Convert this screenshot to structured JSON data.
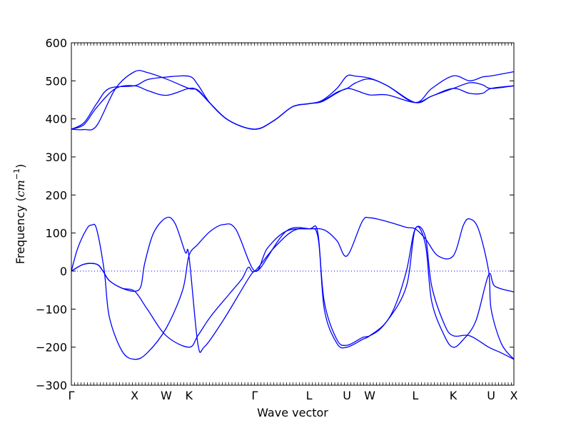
{
  "chart_data": {
    "type": "line",
    "title": "",
    "xlabel": "Wave vector",
    "ylabel": "Frequency",
    "ylabel_unit": "cm",
    "ylabel_unit_exponent": "−1",
    "ylim": [
      -300,
      600
    ],
    "yticks": [
      -300,
      -200,
      -100,
      0,
      100,
      200,
      300,
      400,
      500,
      600
    ],
    "xlim": [
      0,
      3.5
    ],
    "zero_line": true,
    "grid": false,
    "line_color": "#0000ff",
    "high_points": [
      {
        "label": "Γ",
        "x": 0.0
      },
      {
        "label": "X",
        "x": 0.5
      },
      {
        "label": "W",
        "x": 0.75
      },
      {
        "label": "K",
        "x": 0.93
      },
      {
        "label": "Γ",
        "x": 1.45
      },
      {
        "label": "L",
        "x": 1.88
      },
      {
        "label": "U",
        "x": 2.18
      },
      {
        "label": "W",
        "x": 2.36
      },
      {
        "label": "L",
        "x": 2.72
      },
      {
        "label": "K",
        "x": 3.02
      },
      {
        "label": "U",
        "x": 3.32
      },
      {
        "label": "X",
        "x": 3.5
      }
    ],
    "series": [
      {
        "points": [
          [
            0,
            373
          ],
          [
            0.1,
            390
          ],
          [
            0.2,
            440
          ],
          [
            0.3,
            480
          ],
          [
            0.5,
            487
          ],
          [
            0.6,
            503
          ],
          [
            0.75,
            510
          ],
          [
            0.93,
            512
          ],
          [
            1.0,
            490
          ],
          [
            1.1,
            440
          ],
          [
            1.25,
            395
          ],
          [
            1.45,
            373
          ],
          [
            1.6,
            395
          ],
          [
            1.75,
            432
          ],
          [
            1.88,
            440
          ],
          [
            1.98,
            448
          ],
          [
            2.1,
            480
          ],
          [
            2.18,
            513
          ],
          [
            2.25,
            512
          ],
          [
            2.36,
            507
          ],
          [
            2.5,
            487
          ],
          [
            2.72,
            443
          ],
          [
            2.85,
            480
          ],
          [
            3.02,
            513
          ],
          [
            3.15,
            500
          ],
          [
            3.25,
            510
          ],
          [
            3.32,
            513
          ],
          [
            3.5,
            524
          ]
        ]
      },
      {
        "points": [
          [
            0,
            373
          ],
          [
            0.1,
            372
          ],
          [
            0.2,
            382
          ],
          [
            0.35,
            480
          ],
          [
            0.5,
            524
          ],
          [
            0.6,
            522
          ],
          [
            0.75,
            505
          ],
          [
            0.93,
            480
          ],
          [
            1.0,
            476
          ],
          [
            1.1,
            440
          ],
          [
            1.25,
            395
          ],
          [
            1.45,
            373
          ],
          [
            1.6,
            395
          ],
          [
            1.75,
            432
          ],
          [
            1.88,
            440
          ],
          [
            1.98,
            445
          ],
          [
            2.1,
            468
          ],
          [
            2.18,
            480
          ],
          [
            2.25,
            475
          ],
          [
            2.36,
            463
          ],
          [
            2.5,
            463
          ],
          [
            2.72,
            443
          ],
          [
            2.85,
            460
          ],
          [
            3.02,
            480
          ],
          [
            3.15,
            495
          ],
          [
            3.25,
            490
          ],
          [
            3.32,
            480
          ],
          [
            3.5,
            487
          ]
        ]
      },
      {
        "points": [
          [
            0,
            373
          ],
          [
            0.1,
            385
          ],
          [
            0.2,
            430
          ],
          [
            0.35,
            480
          ],
          [
            0.5,
            487
          ],
          [
            0.6,
            475
          ],
          [
            0.75,
            462
          ],
          [
            0.93,
            480
          ],
          [
            1.0,
            474
          ],
          [
            1.1,
            440
          ],
          [
            1.25,
            395
          ],
          [
            1.45,
            373
          ],
          [
            1.6,
            395
          ],
          [
            1.75,
            432
          ],
          [
            1.88,
            440
          ],
          [
            1.98,
            446
          ],
          [
            2.1,
            470
          ],
          [
            2.18,
            480
          ],
          [
            2.25,
            495
          ],
          [
            2.36,
            505
          ],
          [
            2.5,
            487
          ],
          [
            2.72,
            443
          ],
          [
            2.85,
            460
          ],
          [
            3.02,
            480
          ],
          [
            3.15,
            467
          ],
          [
            3.25,
            467
          ],
          [
            3.32,
            480
          ],
          [
            3.5,
            487
          ]
        ]
      },
      {
        "points": [
          [
            0,
            0
          ],
          [
            0.05,
            60
          ],
          [
            0.12,
            110
          ],
          [
            0.16,
            121
          ],
          [
            0.2,
            110
          ],
          [
            0.26,
            0
          ],
          [
            0.3,
            -120
          ],
          [
            0.4,
            -210
          ],
          [
            0.5,
            -232
          ],
          [
            0.6,
            -215
          ],
          [
            0.75,
            -150
          ],
          [
            0.88,
            -50
          ],
          [
            0.93,
            40
          ],
          [
            1.0,
            70
          ],
          [
            1.1,
            105
          ],
          [
            1.2,
            122
          ],
          [
            1.3,
            110
          ],
          [
            1.45,
            0
          ],
          [
            1.55,
            60
          ],
          [
            1.7,
            105
          ],
          [
            1.88,
            111
          ],
          [
            2.0,
            108
          ],
          [
            2.1,
            80
          ],
          [
            2.18,
            40
          ],
          [
            2.3,
            130
          ],
          [
            2.36,
            140
          ],
          [
            2.5,
            130
          ],
          [
            2.65,
            115
          ],
          [
            2.72,
            111
          ],
          [
            2.8,
            85
          ],
          [
            2.9,
            40
          ],
          [
            3.02,
            40
          ],
          [
            3.1,
            120
          ],
          [
            3.15,
            137
          ],
          [
            3.22,
            110
          ],
          [
            3.3,
            0
          ],
          [
            3.32,
            -100
          ],
          [
            3.4,
            -190
          ],
          [
            3.5,
            -232
          ]
        ]
      },
      {
        "points": [
          [
            0,
            0
          ],
          [
            0.1,
            18
          ],
          [
            0.2,
            18
          ],
          [
            0.25,
            0
          ],
          [
            0.3,
            -25
          ],
          [
            0.4,
            -45
          ],
          [
            0.5,
            -53
          ],
          [
            0.55,
            -40
          ],
          [
            0.58,
            20
          ],
          [
            0.65,
            100
          ],
          [
            0.75,
            140
          ],
          [
            0.82,
            125
          ],
          [
            0.9,
            50
          ],
          [
            0.93,
            40
          ],
          [
            1.0,
            -190
          ],
          [
            1.05,
            -200
          ],
          [
            1.2,
            -130
          ],
          [
            1.4,
            -20
          ],
          [
            1.45,
            0
          ],
          [
            1.5,
            10
          ],
          [
            1.7,
            105
          ],
          [
            1.88,
            111
          ],
          [
            1.95,
            100
          ],
          [
            2.0,
            -100
          ],
          [
            2.1,
            -190
          ],
          [
            2.18,
            -200
          ],
          [
            2.3,
            -180
          ],
          [
            2.36,
            -170
          ],
          [
            2.5,
            -130
          ],
          [
            2.65,
            -40
          ],
          [
            2.72,
            111
          ],
          [
            2.8,
            70
          ],
          [
            2.85,
            -80
          ],
          [
            2.95,
            -170
          ],
          [
            3.02,
            -200
          ],
          [
            3.1,
            -180
          ],
          [
            3.2,
            -130
          ],
          [
            3.3,
            -10
          ],
          [
            3.35,
            -40
          ],
          [
            3.5,
            -55
          ]
        ]
      },
      {
        "points": [
          [
            0,
            0
          ],
          [
            0.1,
            18
          ],
          [
            0.2,
            18
          ],
          [
            0.25,
            0
          ],
          [
            0.3,
            -25
          ],
          [
            0.4,
            -45
          ],
          [
            0.5,
            -53
          ],
          [
            0.6,
            -100
          ],
          [
            0.75,
            -170
          ],
          [
            0.93,
            -200
          ],
          [
            1.0,
            -170
          ],
          [
            1.1,
            -120
          ],
          [
            1.25,
            -60
          ],
          [
            1.35,
            -20
          ],
          [
            1.4,
            10
          ],
          [
            1.45,
            0
          ],
          [
            1.6,
            60
          ],
          [
            1.75,
            105
          ],
          [
            1.88,
            111
          ],
          [
            1.95,
            90
          ],
          [
            2.0,
            -80
          ],
          [
            2.1,
            -180
          ],
          [
            2.18,
            -195
          ],
          [
            2.3,
            -175
          ],
          [
            2.36,
            -170
          ],
          [
            2.45,
            -150
          ],
          [
            2.55,
            -100
          ],
          [
            2.65,
            0
          ],
          [
            2.72,
            111
          ],
          [
            2.8,
            90
          ],
          [
            2.85,
            -40
          ],
          [
            2.95,
            -140
          ],
          [
            3.02,
            -170
          ],
          [
            3.15,
            -170
          ],
          [
            3.3,
            -200
          ],
          [
            3.4,
            -215
          ],
          [
            3.5,
            -232
          ]
        ]
      }
    ]
  }
}
